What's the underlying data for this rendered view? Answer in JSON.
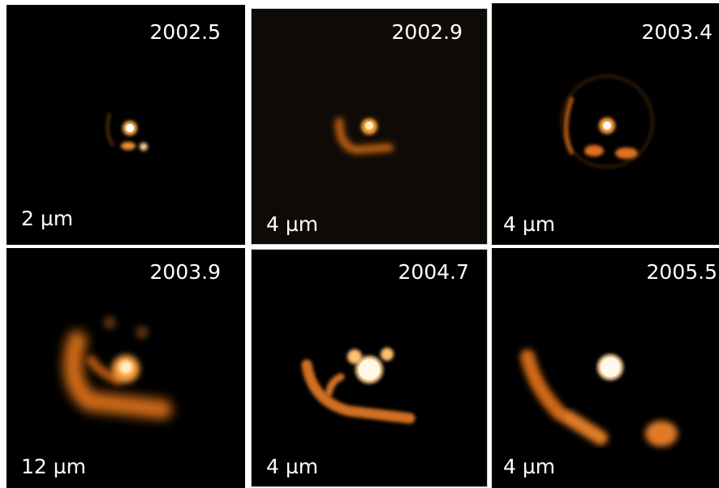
{
  "panels": [
    {
      "year": "2002.5",
      "wavelength": "2 µm"
    },
    {
      "year": "2002.9",
      "wavelength": "4 µm"
    },
    {
      "year": "2003.4",
      "wavelength": "4 µm"
    },
    {
      "year": "2003.9",
      "wavelength": "12 µm"
    },
    {
      "year": "2004.7",
      "wavelength": "4 µm"
    },
    {
      "year": "2005.5",
      "wavelength": "4 µm"
    }
  ]
}
